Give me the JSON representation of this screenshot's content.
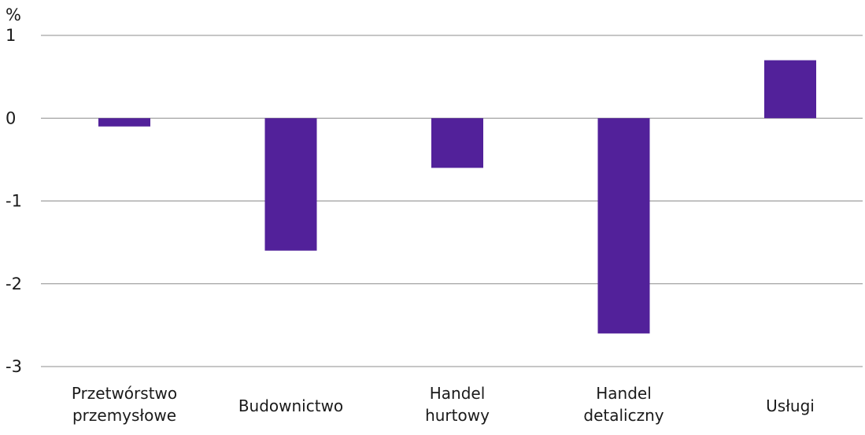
{
  "chart_data": {
    "type": "bar",
    "ylabel": "%",
    "ylim": [
      -3,
      1
    ],
    "yticks": [
      1,
      0,
      -1,
      -2,
      -3
    ],
    "ytick_labels": [
      "1",
      "0",
      "-1",
      "-2",
      "-3"
    ],
    "grid": true,
    "bar_color": "#52219a",
    "categories": [
      [
        "Przetwórstwo",
        "przemysłowe"
      ],
      [
        "Budownictwo"
      ],
      [
        "Handel",
        "hurtowy"
      ],
      [
        "Handel",
        "detaliczny"
      ],
      [
        "Usługi"
      ]
    ],
    "values": [
      -0.1,
      -1.6,
      -0.6,
      -2.6,
      0.7
    ]
  }
}
